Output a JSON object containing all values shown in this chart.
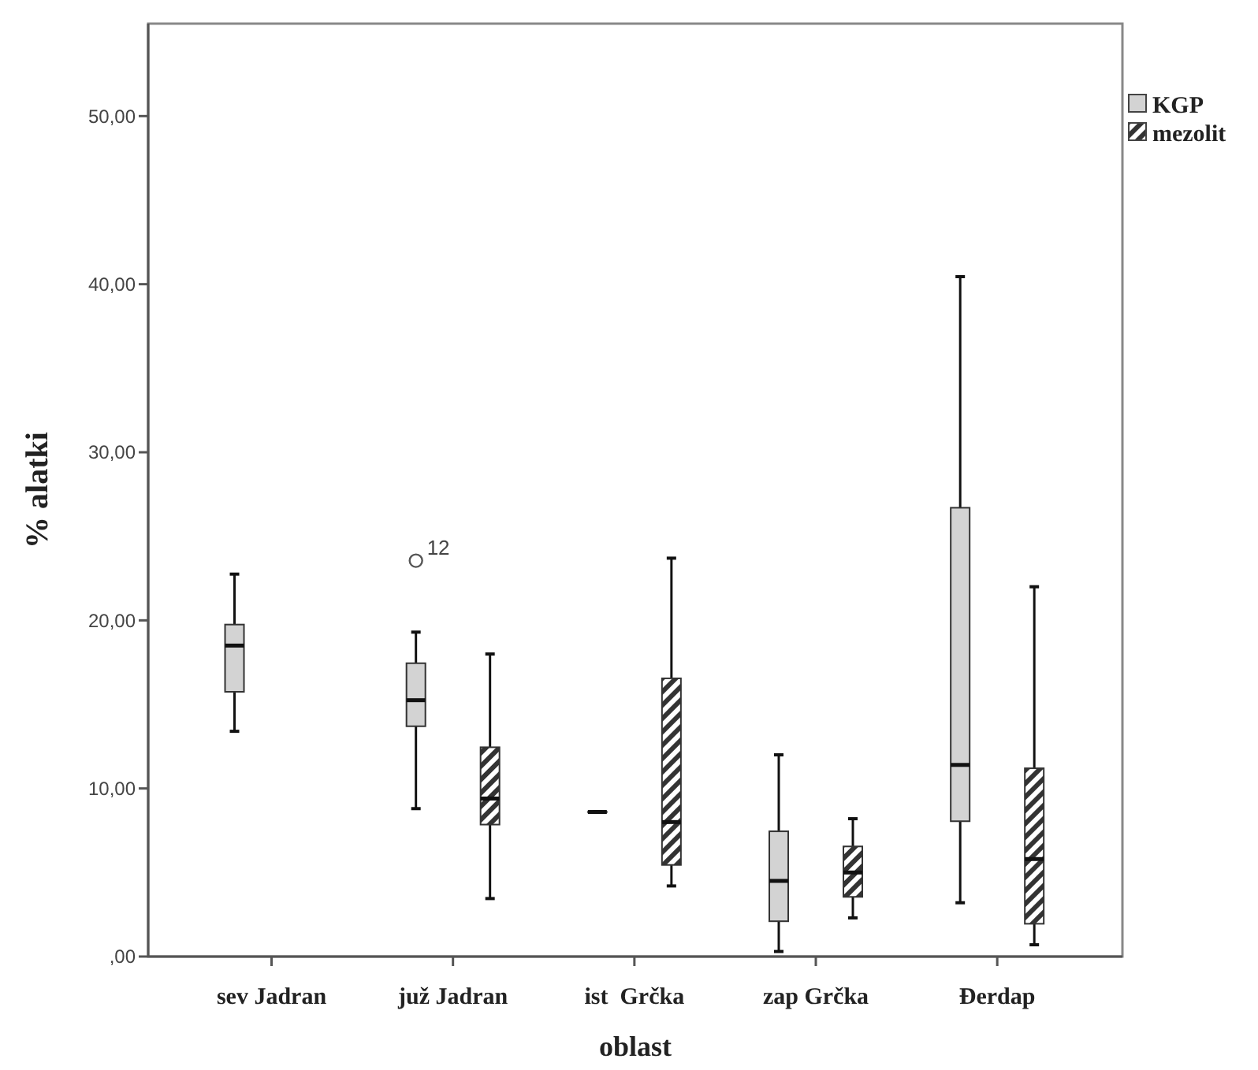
{
  "chart_data": {
    "type": "box",
    "xlabel": "oblast",
    "ylabel": "% alatki",
    "categories": [
      "sev Jadran",
      "juž Jadran",
      "ist  Grčka",
      "zap Grčka",
      "Đerdap"
    ],
    "ylim": [
      0,
      55.5
    ],
    "yticks": [
      {
        "value": 0,
        "label": ",00"
      },
      {
        "value": 10,
        "label": "10,00"
      },
      {
        "value": 20,
        "label": "20,00"
      },
      {
        "value": 30,
        "label": "30,00"
      },
      {
        "value": 40,
        "label": "40,00"
      },
      {
        "value": 50,
        "label": "50,00"
      }
    ],
    "legend": "top right",
    "series": [
      {
        "name": "KGP",
        "color": "#d3d3d3",
        "boxes": [
          {
            "low": 13.4,
            "q1": 15.75,
            "median": 18.5,
            "q3": 19.75,
            "high": 22.75
          },
          {
            "low": 8.8,
            "q1": 13.7,
            "median": 15.25,
            "q3": 17.45,
            "high": 19.3,
            "outliers": [
              23.55
            ]
          },
          {
            "low": 8.6,
            "q1": 8.6,
            "median": 8.6,
            "q3": 8.6,
            "high": 8.6
          },
          {
            "low": 0.3,
            "q1": 2.1,
            "median": 4.5,
            "q3": 7.45,
            "high": 12.0
          },
          {
            "low": 3.2,
            "q1": 8.05,
            "median": 11.4,
            "q3": 26.7,
            "high": 40.45
          }
        ]
      },
      {
        "name": "mezolit",
        "color": "#333333",
        "boxes": [
          null,
          {
            "low": 3.45,
            "q1": 7.85,
            "median": 9.4,
            "q3": 12.45,
            "high": 18.0
          },
          {
            "low": 4.2,
            "q1": 5.45,
            "median": 8.0,
            "q3": 16.55,
            "high": 23.7
          },
          {
            "low": 2.3,
            "q1": 3.55,
            "median": 5.0,
            "q3": 6.55,
            "high": 8.2
          },
          {
            "low": 0.7,
            "q1": 1.95,
            "median": 5.8,
            "q3": 11.2,
            "high": 22.0
          }
        ]
      }
    ],
    "annotations": [
      "12"
    ]
  }
}
